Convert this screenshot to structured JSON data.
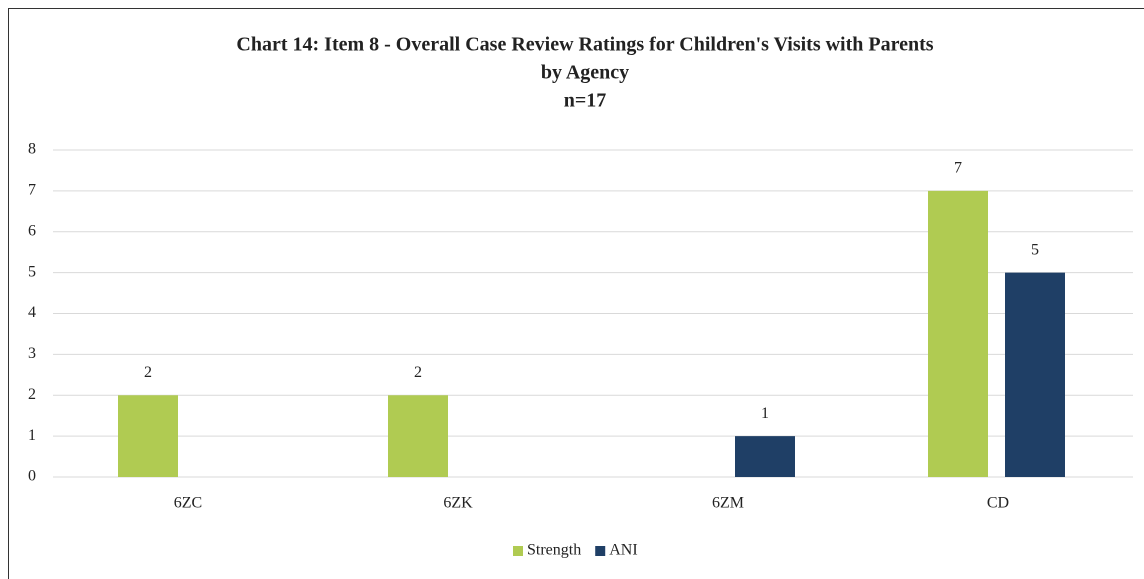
{
  "chart_data": {
    "type": "bar",
    "title": [
      "Chart 14: Item 8 - Overall Case Review  Ratings for Children's Visits with Parents",
      "by Agency",
      "n=17"
    ],
    "categories": [
      "6ZC",
      "6ZK",
      "6ZM",
      "CD"
    ],
    "series": [
      {
        "name": "Strength",
        "color": "#b0cb52",
        "values": [
          2,
          2,
          null,
          7
        ]
      },
      {
        "name": "ANI",
        "color": "#1f3f66",
        "values": [
          null,
          null,
          1,
          5
        ]
      }
    ],
    "ylim": [
      0,
      8
    ],
    "yticks": [
      0,
      1,
      2,
      3,
      4,
      5,
      6,
      7,
      8
    ],
    "grid": true,
    "legend": "bottom"
  }
}
